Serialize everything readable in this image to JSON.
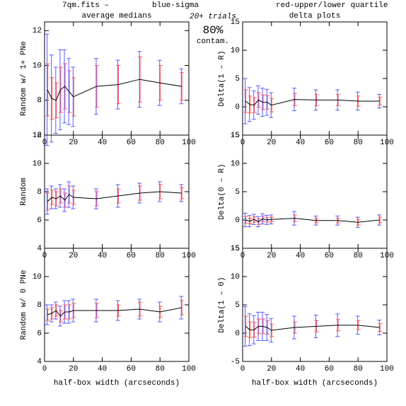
{
  "header": {
    "file": "7qm.fits  –",
    "sigma_legend": "blue-sigma",
    "quartile_legend": "red-upper/lower quartile",
    "trials": "20+ trials",
    "percent": "80%",
    "contam": "contam.",
    "sigma_color": "#5a5aff",
    "quartile_color": "#ff5a5a"
  },
  "chart_data": [
    {
      "type": "line",
      "title": "average medians",
      "y_label": "Random w/ 1+ PNe",
      "x": [
        2,
        5,
        8,
        11,
        14,
        17,
        20,
        36,
        51,
        66,
        80,
        95
      ],
      "values": [
        8.6,
        8.1,
        8.0,
        8.6,
        8.8,
        8.5,
        8.2,
        8.8,
        8.9,
        9.2,
        9.0,
        8.8
      ],
      "sigma": [
        3.2,
        2.5,
        1.9,
        2.3,
        2.1,
        1.9,
        1.7,
        1.6,
        1.4,
        1.6,
        1.3,
        1.0
      ],
      "quartile": [
        1.5,
        1.2,
        1.0,
        1.3,
        1.3,
        1.2,
        1.1,
        1.2,
        1.1,
        1.3,
        1.0,
        0.8
      ],
      "xlim": [
        0,
        100
      ],
      "xticks": [
        0,
        20,
        40,
        60,
        80,
        100
      ],
      "ylim": [
        6,
        12.5
      ],
      "yticks": [
        6,
        8,
        10,
        12
      ],
      "color": "#000000"
    },
    {
      "type": "line",
      "title": "delta plots",
      "y_label": "Delta(1 – R)",
      "x": [
        2,
        5,
        8,
        11,
        14,
        17,
        20,
        36,
        51,
        66,
        80,
        95
      ],
      "values": [
        1.0,
        0.4,
        0.3,
        1.2,
        0.8,
        0.8,
        0.3,
        1.3,
        1.2,
        1.2,
        1.0,
        1.0
      ],
      "sigma": [
        4.0,
        3.0,
        2.5,
        2.5,
        2.5,
        2.3,
        2.2,
        2.0,
        1.8,
        1.8,
        1.6,
        1.2
      ],
      "quartile": [
        2.0,
        1.5,
        1.3,
        1.3,
        1.3,
        1.2,
        1.2,
        1.1,
        1.0,
        1.0,
        0.9,
        0.7
      ],
      "xlim": [
        0,
        100
      ],
      "xticks": [
        0,
        20,
        40,
        60,
        80,
        100
      ],
      "ylim": [
        -5,
        15
      ],
      "yticks": [
        -5,
        0,
        5,
        10,
        15
      ],
      "color": "#000000"
    },
    {
      "type": "line",
      "y_label": "Random",
      "x": [
        2,
        5,
        8,
        11,
        14,
        17,
        20,
        36,
        51,
        66,
        80,
        95
      ],
      "values": [
        7.3,
        7.6,
        7.5,
        7.7,
        7.4,
        7.8,
        7.6,
        7.5,
        7.7,
        7.9,
        8.0,
        7.9
      ],
      "sigma": [
        0.9,
        0.8,
        0.7,
        0.8,
        0.8,
        0.9,
        0.8,
        0.7,
        0.8,
        0.7,
        0.7,
        0.6
      ],
      "quartile": [
        0.6,
        0.5,
        0.5,
        0.5,
        0.5,
        0.6,
        0.5,
        0.5,
        0.5,
        0.5,
        0.5,
        0.4
      ],
      "xlim": [
        0,
        100
      ],
      "xticks": [
        0,
        20,
        40,
        60,
        80,
        100
      ],
      "ylim": [
        4,
        12
      ],
      "yticks": [
        4,
        6,
        8,
        10,
        12
      ],
      "color": "#000000"
    },
    {
      "type": "line",
      "y_label": "Delta(0 – R)",
      "x": [
        2,
        5,
        8,
        11,
        14,
        17,
        20,
        36,
        51,
        66,
        80,
        95
      ],
      "values": [
        0.0,
        -0.2,
        0.1,
        -0.3,
        0.2,
        0.0,
        0.1,
        0.3,
        -0.1,
        -0.1,
        -0.4,
        0.0
      ],
      "sigma": [
        1.2,
        1.0,
        0.9,
        0.9,
        0.9,
        0.8,
        0.8,
        1.2,
        0.8,
        0.8,
        0.9,
        0.9
      ],
      "quartile": [
        0.6,
        0.5,
        0.5,
        0.5,
        0.5,
        0.4,
        0.4,
        0.6,
        0.4,
        0.4,
        0.5,
        0.5
      ],
      "xlim": [
        0,
        100
      ],
      "xticks": [
        0,
        20,
        40,
        60,
        80,
        100
      ],
      "ylim": [
        -5,
        15
      ],
      "yticks": [
        -5,
        0,
        5,
        10,
        15
      ],
      "color": "#000000"
    },
    {
      "type": "line",
      "y_label": "Random w/ 0 PNe",
      "x_label": "half-box width (arcseconds)",
      "x": [
        2,
        5,
        8,
        11,
        14,
        17,
        20,
        36,
        51,
        66,
        80,
        95
      ],
      "values": [
        7.3,
        7.4,
        7.6,
        7.2,
        7.5,
        7.5,
        7.6,
        7.6,
        7.6,
        7.7,
        7.5,
        7.8
      ],
      "sigma": [
        0.7,
        0.6,
        0.6,
        0.7,
        0.8,
        0.8,
        0.8,
        0.8,
        0.7,
        0.7,
        0.7,
        0.8
      ],
      "quartile": [
        0.4,
        0.4,
        0.4,
        0.4,
        0.5,
        0.5,
        0.5,
        0.5,
        0.4,
        0.5,
        0.4,
        0.5
      ],
      "xlim": [
        0,
        100
      ],
      "xticks": [
        0,
        20,
        40,
        60,
        80,
        100
      ],
      "ylim": [
        4,
        12
      ],
      "yticks": [
        4,
        6,
        8,
        10
      ],
      "color": "#000000"
    },
    {
      "type": "line",
      "y_label": "Delta(1 – 0)",
      "x_label": "half-box width (arcseconds)",
      "x": [
        2,
        5,
        8,
        11,
        14,
        17,
        20,
        36,
        51,
        66,
        80,
        95
      ],
      "values": [
        1.2,
        0.6,
        0.6,
        1.2,
        1.2,
        1.0,
        0.5,
        1.0,
        1.2,
        1.4,
        1.4,
        1.0
      ],
      "sigma": [
        3.5,
        2.8,
        2.5,
        2.5,
        2.5,
        2.3,
        2.1,
        2.0,
        2.0,
        2.0,
        1.6,
        1.3
      ],
      "quartile": [
        1.8,
        1.4,
        1.3,
        1.3,
        1.3,
        1.2,
        1.1,
        1.0,
        1.0,
        1.0,
        0.8,
        0.7
      ],
      "xlim": [
        0,
        100
      ],
      "xticks": [
        0,
        20,
        40,
        60,
        80,
        100
      ],
      "ylim": [
        -5,
        15
      ],
      "yticks": [
        -5,
        0,
        5,
        10,
        15
      ],
      "color": "#000000"
    }
  ]
}
